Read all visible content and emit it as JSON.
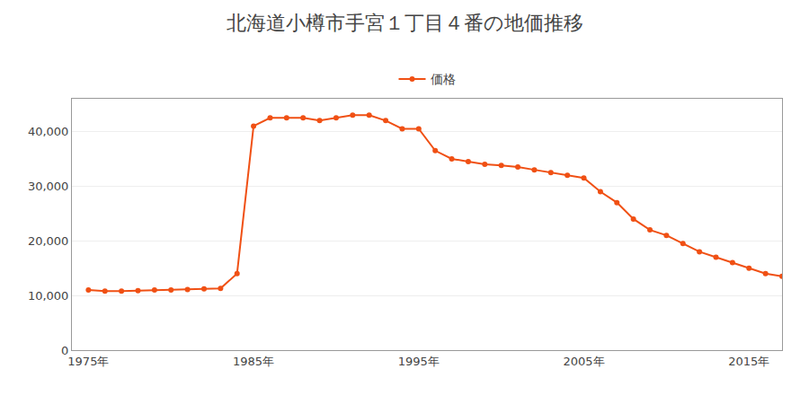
{
  "chart_data": {
    "type": "line",
    "title": "北海道小樽市手宮１丁目４番の地価推移",
    "x": [
      1975,
      1976,
      1977,
      1978,
      1979,
      1980,
      1981,
      1982,
      1983,
      1984,
      1985,
      1986,
      1987,
      1988,
      1989,
      1990,
      1991,
      1992,
      1993,
      1994,
      1995,
      1996,
      1997,
      1998,
      1999,
      2000,
      2001,
      2002,
      2003,
      2004,
      2005,
      2006,
      2007,
      2008,
      2009,
      2010,
      2011,
      2012,
      2013,
      2014,
      2015,
      2016,
      2017
    ],
    "series": [
      {
        "name": "価格",
        "color": "#f05014",
        "marker": "circle",
        "values": [
          11000,
          10800,
          10800,
          10900,
          11000,
          11000,
          11100,
          11200,
          11300,
          14000,
          41000,
          42500,
          42500,
          42500,
          42000,
          42500,
          43000,
          43000,
          42000,
          40500,
          40500,
          36500,
          35000,
          34500,
          34000,
          33800,
          33500,
          33000,
          32500,
          32000,
          31500,
          29000,
          27000,
          24000,
          22000,
          21000,
          19500,
          18000,
          17000,
          16000,
          15000,
          14000,
          13500
        ]
      }
    ],
    "xlim": [
      1974,
      2017
    ],
    "xticks": [
      {
        "value": 1975,
        "label": "1975年"
      },
      {
        "value": 1985,
        "label": "1985年"
      },
      {
        "value": 1995,
        "label": "1995年"
      },
      {
        "value": 2005,
        "label": "2005年"
      },
      {
        "value": 2015,
        "label": "2015年"
      }
    ],
    "ylim": [
      0,
      46000
    ],
    "yticks": [
      0,
      {
        "value": 10000,
        "label": "10,000"
      },
      {
        "value": 20000,
        "label": "20,000"
      },
      {
        "value": 30000,
        "label": "30,000"
      },
      {
        "value": 40000,
        "label": "40,000"
      }
    ],
    "grid": "y",
    "legend": "top"
  }
}
